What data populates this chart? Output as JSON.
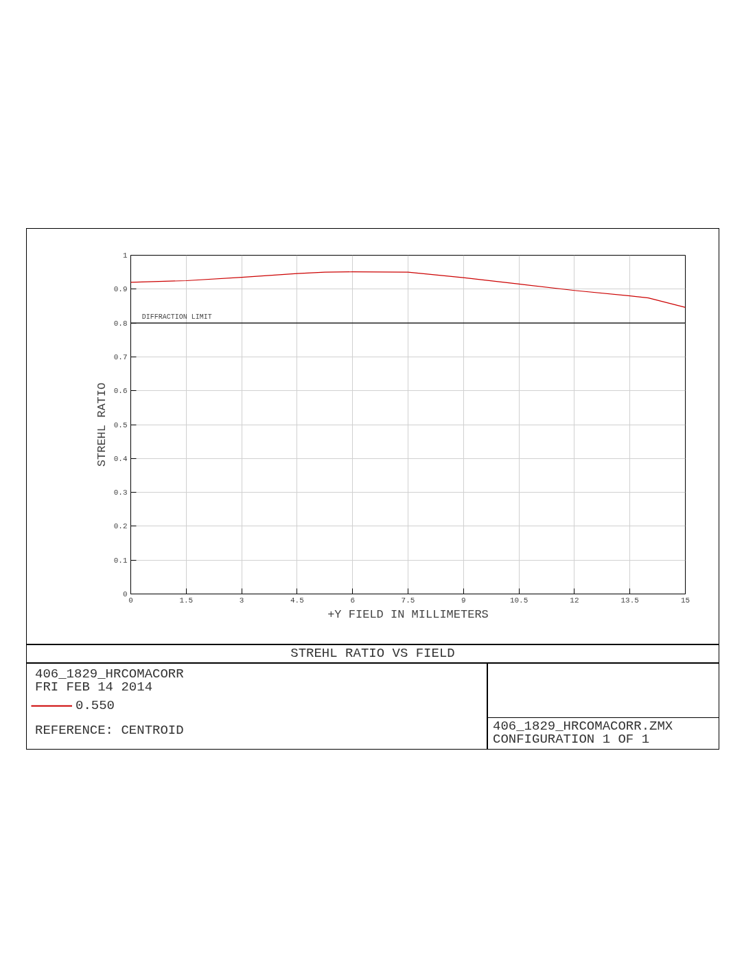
{
  "chart_data": {
    "type": "line",
    "title": "STREHL RATIO VS FIELD",
    "xlabel": "+Y FIELD IN MILLIMETERS",
    "ylabel": "STREHL RATIO",
    "x": [
      0,
      1.5,
      3,
      4.5,
      5.25,
      6,
      7.5,
      9,
      10.5,
      12,
      13.5,
      14,
      15
    ],
    "series": [
      {
        "name": "0.550",
        "color": "#cc0000",
        "values": [
          0.92,
          0.925,
          0.935,
          0.946,
          0.95,
          0.951,
          0.95,
          0.934,
          0.915,
          0.896,
          0.88,
          0.874,
          0.846
        ]
      }
    ],
    "xlim": [
      0,
      15
    ],
    "ylim": [
      0,
      1
    ],
    "xticks": [
      0,
      1.5,
      3,
      4.5,
      6,
      7.5,
      9,
      10.5,
      12,
      13.5,
      15
    ],
    "yticks": [
      0,
      0.1,
      0.2,
      0.3,
      0.4,
      0.5,
      0.6,
      0.7,
      0.8,
      0.9,
      1
    ],
    "ref_lines": [
      {
        "axis": "y",
        "value": 0.8,
        "label": "DIFFRACTION LIMIT"
      }
    ],
    "grid": true,
    "legend": "bottom left",
    "annotations": [
      "406_1829_HRCOMACORR",
      "FRI FEB 14 2014",
      "REFERENCE: CENTROID",
      "406_1829_HRCOMACORR.ZMX",
      "CONFIGURATION 1 OF 1"
    ]
  }
}
